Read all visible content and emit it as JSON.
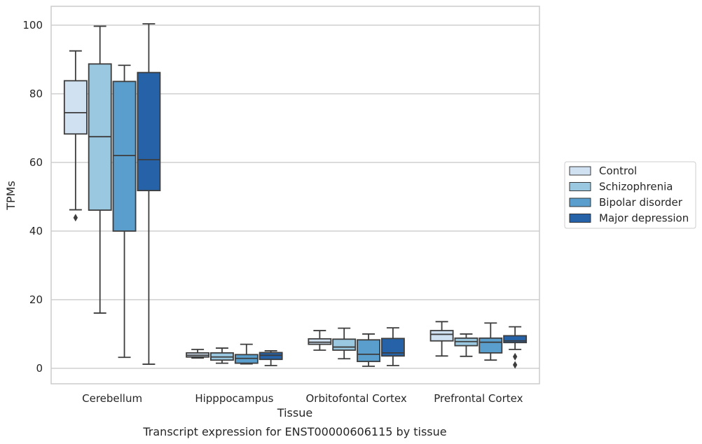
{
  "chart_data": {
    "type": "box",
    "title": "",
    "caption": "Transcript expression for ENST00000606115 by tissue",
    "xlabel": "Tissue",
    "ylabel": "TPMs",
    "ylim": [
      -4.5,
      105.5
    ],
    "yticks": [
      0,
      20,
      40,
      60,
      80,
      100
    ],
    "grid": "horizontal",
    "legend_position": "right",
    "categories": [
      "Cerebellum",
      "Hipppocampus",
      "Orbitofontal Cortex",
      "Prefrontal Cortex"
    ],
    "series": [
      {
        "name": "Control",
        "color": "#d0e1f2",
        "boxes": [
          {
            "whislo": 46.2,
            "q1": 68.3,
            "med": 74.5,
            "q3": 83.8,
            "whishi": 92.5,
            "fliers": [
              43.9
            ]
          },
          {
            "whislo": 3.0,
            "q1": 3.3,
            "med": 3.8,
            "q3": 4.5,
            "whishi": 5.5,
            "fliers": []
          },
          {
            "whislo": 5.3,
            "q1": 7.0,
            "med": 7.6,
            "q3": 8.6,
            "whishi": 11.0,
            "fliers": []
          },
          {
            "whislo": 3.6,
            "q1": 8.0,
            "med": 9.9,
            "q3": 11.0,
            "whishi": 13.6,
            "fliers": []
          }
        ]
      },
      {
        "name": "Schizophrenia",
        "color": "#9ac8e0",
        "boxes": [
          {
            "whislo": 16.1,
            "q1": 46.1,
            "med": 67.5,
            "q3": 88.7,
            "whishi": 99.7,
            "fliers": []
          },
          {
            "whislo": 1.5,
            "q1": 2.4,
            "med": 3.3,
            "q3": 4.5,
            "whishi": 5.9,
            "fliers": []
          },
          {
            "whislo": 2.8,
            "q1": 5.3,
            "med": 6.2,
            "q3": 8.5,
            "whishi": 11.7,
            "fliers": []
          },
          {
            "whislo": 3.5,
            "q1": 6.6,
            "med": 7.8,
            "q3": 8.8,
            "whishi": 10.0,
            "fliers": []
          }
        ]
      },
      {
        "name": "Bipolar disorder",
        "color": "#5a9ecd",
        "boxes": [
          {
            "whislo": 3.2,
            "q1": 40.0,
            "med": 62.0,
            "q3": 83.6,
            "whishi": 88.3,
            "fliers": []
          },
          {
            "whislo": 1.3,
            "q1": 1.5,
            "med": 2.9,
            "q3": 4.0,
            "whishi": 7.0,
            "fliers": []
          },
          {
            "whislo": 0.6,
            "q1": 2.0,
            "med": 4.1,
            "q3": 8.3,
            "whishi": 10.0,
            "fliers": []
          },
          {
            "whislo": 2.4,
            "q1": 4.5,
            "med": 7.6,
            "q3": 8.8,
            "whishi": 13.2,
            "fliers": []
          }
        ]
      },
      {
        "name": "Major depression",
        "color": "#2562a8",
        "boxes": [
          {
            "whislo": 1.2,
            "q1": 51.8,
            "med": 60.8,
            "q3": 86.2,
            "whishi": 100.4,
            "fliers": []
          },
          {
            "whislo": 0.8,
            "q1": 2.6,
            "med": 3.8,
            "q3": 4.6,
            "whishi": 5.1,
            "fliers": []
          },
          {
            "whislo": 0.8,
            "q1": 3.6,
            "med": 4.5,
            "q3": 8.7,
            "whishi": 11.8,
            "fliers": []
          },
          {
            "whislo": 5.5,
            "q1": 7.5,
            "med": 8.0,
            "q3": 9.5,
            "whishi": 12.1,
            "fliers": [
              3.4,
              1.0
            ]
          }
        ]
      }
    ]
  }
}
